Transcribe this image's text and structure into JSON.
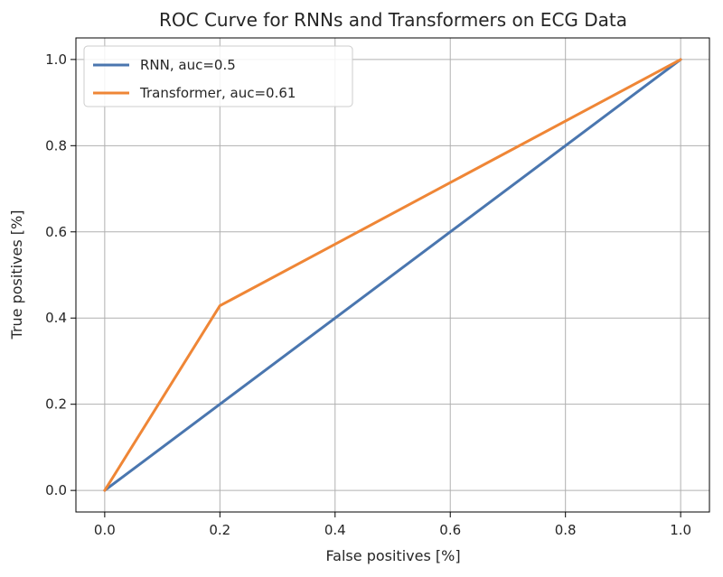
{
  "chart_data": {
    "type": "line",
    "title": "ROC Curve for RNNs and Transformers on ECG Data",
    "xlabel": "False positives [%]",
    "ylabel": "True positives [%]",
    "xlim": [
      -0.05,
      1.05
    ],
    "ylim": [
      -0.05,
      1.05
    ],
    "xticks": [
      0.0,
      0.2,
      0.4,
      0.6,
      0.8,
      1.0
    ],
    "yticks": [
      0.0,
      0.2,
      0.4,
      0.6,
      0.8,
      1.0
    ],
    "xtick_labels": [
      "0.0",
      "0.2",
      "0.4",
      "0.6",
      "0.8",
      "1.0"
    ],
    "ytick_labels": [
      "0.0",
      "0.2",
      "0.4",
      "0.6",
      "0.8",
      "1.0"
    ],
    "grid": true,
    "legend_position": "upper-left",
    "series": [
      {
        "name": "RNN, auc=0.5",
        "color": "#4a76af",
        "x": [
          0.0,
          1.0
        ],
        "y": [
          0.0,
          1.0
        ]
      },
      {
        "name": "Transformer, auc=0.61",
        "color": "#ef8636",
        "x": [
          0.0,
          0.2,
          1.0
        ],
        "y": [
          0.0,
          0.4286,
          1.0
        ]
      }
    ]
  }
}
